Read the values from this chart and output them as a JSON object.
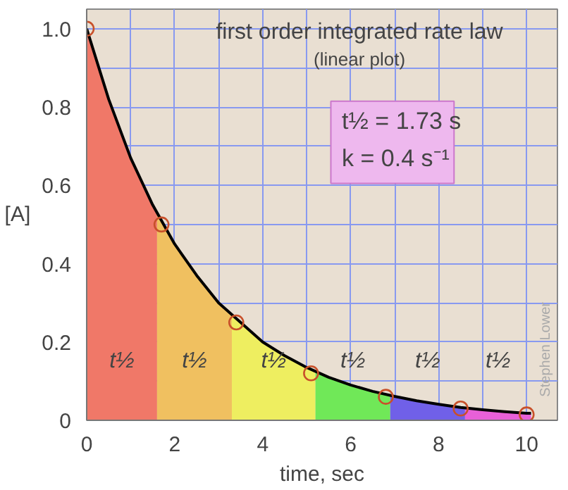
{
  "chart_data": {
    "type": "area",
    "title": "first order integrated rate law",
    "subtitle": "(linear plot)",
    "xlabel": "time, sec",
    "ylabel": "[A]",
    "xlim": [
      0,
      10.7
    ],
    "ylim": [
      0,
      1.05
    ],
    "xticks": [
      0,
      {
        "value": 1,
        "label": null
      },
      2,
      {
        "value": 3,
        "label": null
      },
      4,
      {
        "value": 5,
        "label": null
      },
      6,
      {
        "value": 7,
        "label": null
      },
      8,
      {
        "value": 9,
        "label": null
      },
      10
    ],
    "yticks": [
      0,
      {
        "value": 0.1,
        "label": null
      },
      0.2,
      {
        "value": 0.3,
        "label": null
      },
      0.4,
      {
        "value": 0.5,
        "label": null
      },
      0.6,
      {
        "value": 0.7,
        "label": null
      },
      0.8,
      {
        "value": 0.9,
        "label": null
      },
      {
        "value": 1,
        "label": "1.0"
      }
    ],
    "grid": true,
    "series": [
      {
        "color": "#f07868",
        "x": [
          0,
          0.5,
          1,
          1.6
        ],
        "values": [
          1,
          0.82,
          0.67,
          0.53
        ]
      },
      {
        "color": "#f0c060",
        "x": [
          1.6,
          2,
          2.5,
          3,
          3.3
        ],
        "values": [
          0.53,
          0.45,
          0.37,
          0.3,
          0.27
        ]
      },
      {
        "color": "#eeee60",
        "x": [
          3.3,
          3.5,
          4,
          4.5,
          5,
          5.2
        ],
        "values": [
          0.27,
          0.25,
          0.2,
          0.165,
          0.135,
          0.125
        ]
      },
      {
        "color": "#70e858",
        "x": [
          5.2,
          5.5,
          6,
          6.5,
          6.9
        ],
        "values": [
          0.125,
          0.11,
          0.09,
          0.074,
          0.063
        ]
      },
      {
        "color": "#7060e8",
        "x": [
          6.9,
          7.5,
          8,
          8.6
        ],
        "values": [
          0.063,
          0.05,
          0.041,
          0.032
        ]
      },
      {
        "color": "#e860d8",
        "x": [
          8.6,
          9,
          9.5,
          10.1
        ],
        "values": [
          0.032,
          0.027,
          0.022,
          0.018
        ]
      },
      {
        "type": "line",
        "color": "#000000",
        "line_style": "solid",
        "x": [
          0,
          0.5,
          1,
          1.5,
          2,
          2.5,
          3,
          3.5,
          4,
          4.5,
          5,
          5.5,
          6,
          6.5,
          7,
          7.5,
          8,
          8.5,
          9,
          9.5,
          10,
          10.1
        ],
        "values": [
          1,
          0.82,
          0.67,
          0.55,
          0.45,
          0.37,
          0.3,
          0.25,
          0.2,
          0.165,
          0.135,
          0.11,
          0.09,
          0.074,
          0.061,
          0.05,
          0.041,
          0.033,
          0.027,
          0.022,
          0.018,
          0.018
        ]
      },
      {
        "type": "scatter",
        "color": "#c8502a",
        "marker": "circle",
        "x": [
          0,
          1.7,
          3.4,
          5.1,
          6.8,
          8.5,
          10
        ],
        "values": [
          1,
          0.5,
          0.25,
          0.12,
          0.06,
          0.03,
          0.015
        ]
      }
    ],
    "annotations": [
      "t½ = 1.73 s",
      "k = 0.4 s⁻¹",
      "Stephen Lower",
      "t½",
      "t½",
      "t½",
      "t½",
      "t½",
      "t½"
    ]
  }
}
